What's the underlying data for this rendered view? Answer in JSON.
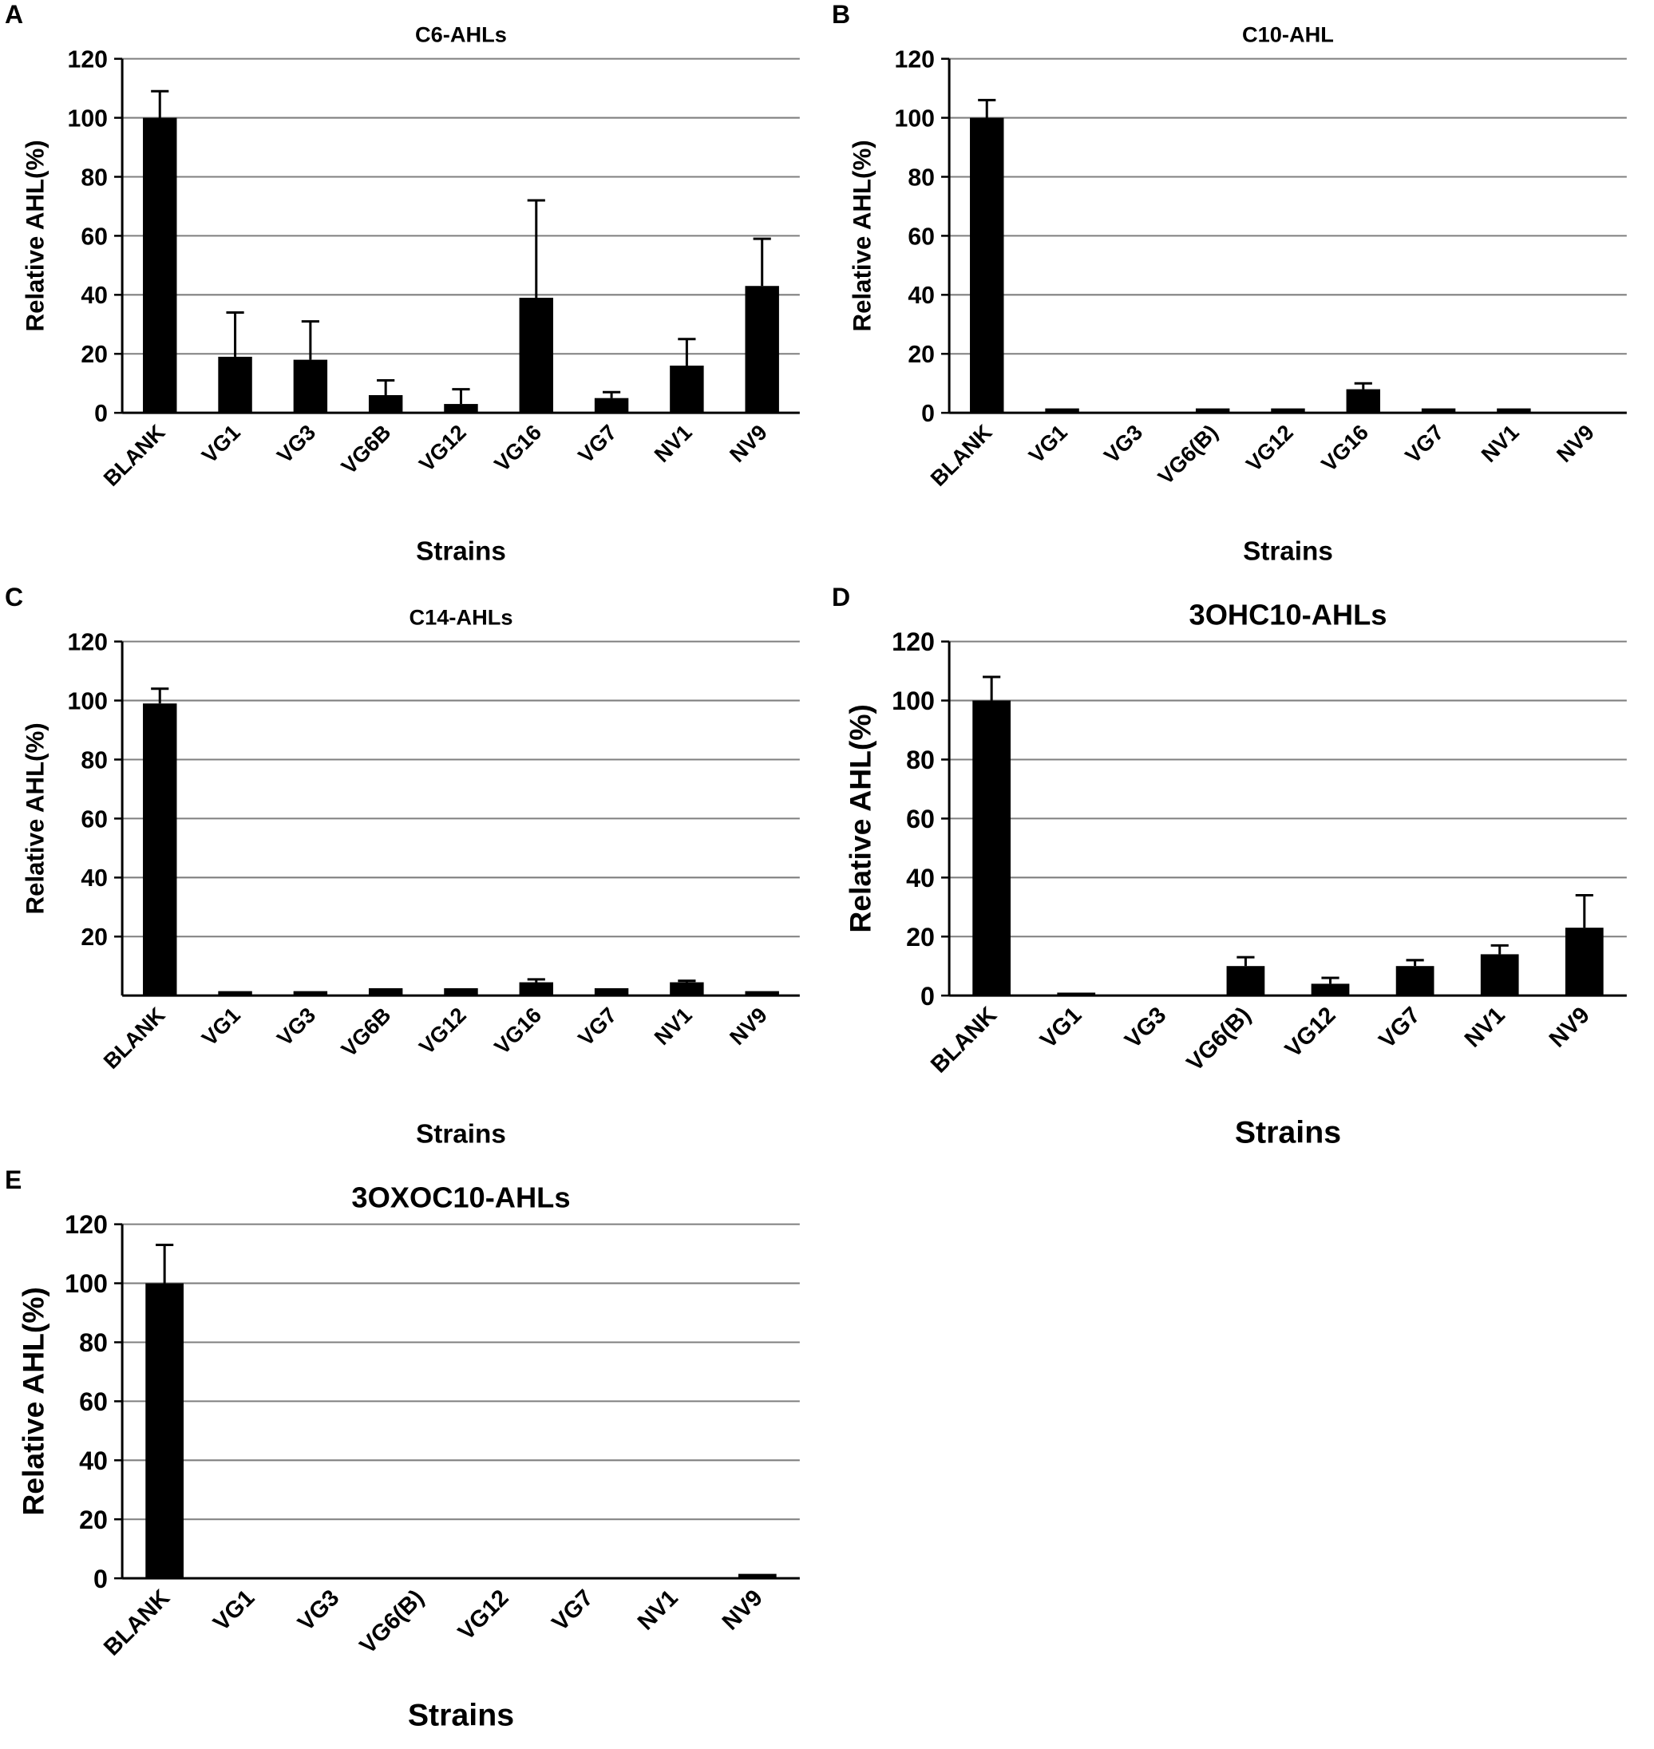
{
  "figure": {
    "background": "#ffffff",
    "bar_color": "#000000",
    "grid_color": "#7f7f7f",
    "axis_color": "#000000"
  },
  "chart_data": [
    {
      "type": "bar",
      "panel": "A",
      "title": "C6-AHLs",
      "xlabel": "Strains",
      "ylabel": "Relative AHL(%)",
      "ylim": [
        0,
        120
      ],
      "ytick_step": 20,
      "yticks": [
        0,
        20,
        40,
        60,
        80,
        100,
        120
      ],
      "grid": true,
      "legend": "none",
      "categories": [
        "BLANK",
        "VG1",
        "VG3",
        "VG6B",
        "VG12",
        "VG16",
        "VG7",
        "NV1",
        "NV9"
      ],
      "values": [
        100,
        19,
        18,
        6,
        3,
        39,
        5,
        16,
        43
      ],
      "errors": [
        9,
        15,
        13,
        5,
        5,
        33,
        2,
        9,
        16
      ]
    },
    {
      "type": "bar",
      "panel": "B",
      "title": "C10-AHL",
      "xlabel": "Strains",
      "ylabel": "Relative AHL(%)",
      "ylim": [
        0,
        120
      ],
      "ytick_step": 20,
      "yticks": [
        0,
        20,
        40,
        60,
        80,
        100,
        120
      ],
      "grid": true,
      "legend": "none",
      "categories": [
        "BLANK",
        "VG1",
        "VG3",
        "VG6(B)",
        "VG12",
        "VG16",
        "VG7",
        "NV1",
        "NV9"
      ],
      "values": [
        100,
        1.5,
        0,
        1.5,
        1.5,
        8,
        1.5,
        1.5,
        0
      ],
      "errors": [
        6,
        0,
        0,
        0,
        0,
        2,
        0,
        0,
        0
      ]
    },
    {
      "type": "bar",
      "panel": "C",
      "title": "C14-AHLs",
      "xlabel": "Strains",
      "ylabel": "Relative AHL(%)",
      "ylim": [
        0,
        120
      ],
      "ytick_step": 20,
      "yticks": [
        20,
        40,
        60,
        80,
        100,
        120
      ],
      "grid": true,
      "legend": "none",
      "categories": [
        "BLANK",
        "VG1",
        "VG3",
        "VG6B",
        "VG12",
        "VG16",
        "VG7",
        "NV1",
        "NV9"
      ],
      "values": [
        99,
        1.5,
        1.5,
        2.5,
        2.5,
        4.5,
        2.5,
        4.5,
        1.5
      ],
      "errors": [
        5,
        0,
        0,
        0,
        0,
        1,
        0,
        0.5,
        0
      ]
    },
    {
      "type": "bar",
      "panel": "D",
      "title": "3OHC10-AHLs",
      "xlabel": "Strains",
      "ylabel": "Relative AHL(%)",
      "ylim": [
        0,
        120
      ],
      "ytick_step": 20,
      "yticks": [
        0,
        20,
        40,
        60,
        80,
        100,
        120
      ],
      "grid": true,
      "legend": "none",
      "categories": [
        "BLANK",
        "VG1",
        "VG3",
        "VG6(B)",
        "VG12",
        "VG7",
        "NV1",
        "NV9"
      ],
      "values": [
        100,
        1,
        0,
        10,
        4,
        10,
        14,
        23
      ],
      "errors": [
        8,
        0,
        0,
        3,
        2,
        2,
        3,
        11
      ]
    },
    {
      "type": "bar",
      "panel": "E",
      "title": "3OXOC10-AHLs",
      "xlabel": "Strains",
      "ylabel": "Relative AHL(%)",
      "ylim": [
        0,
        120
      ],
      "ytick_step": 20,
      "yticks": [
        0,
        20,
        40,
        60,
        80,
        100,
        120
      ],
      "grid": true,
      "legend": "none",
      "categories": [
        "BLANK",
        "VG1",
        "VG3",
        "VG6(B)",
        "VG12",
        "VG7",
        "NV1",
        "NV9"
      ],
      "values": [
        100,
        0,
        0,
        0,
        0,
        0,
        0,
        1.5
      ],
      "errors": [
        13,
        0,
        0,
        0,
        0,
        0,
        0,
        0
      ]
    }
  ]
}
